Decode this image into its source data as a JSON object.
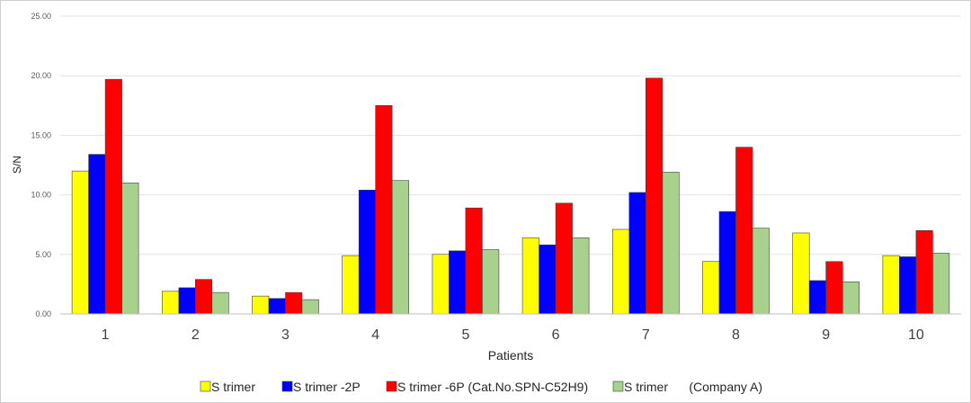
{
  "chart_data": {
    "type": "bar",
    "title": "",
    "xlabel": "Patients",
    "ylabel": "S/N",
    "ylim": [
      0,
      25
    ],
    "yticks": [
      "0.00",
      "5.00",
      "10.00",
      "15.00",
      "20.00",
      "25.00"
    ],
    "categories": [
      "1",
      "2",
      "3",
      "4",
      "5",
      "6",
      "7",
      "8",
      "9",
      "10"
    ],
    "grid": true,
    "legend_position": "bottom",
    "series": [
      {
        "name": "S trimer",
        "color": "#ffff00",
        "values": [
          12.0,
          1.9,
          1.5,
          4.9,
          5.0,
          6.4,
          7.1,
          4.4,
          6.8,
          4.9
        ]
      },
      {
        "name": "S trimer -2P",
        "color": "#0000ff",
        "values": [
          13.4,
          2.2,
          1.3,
          10.4,
          5.3,
          5.8,
          10.2,
          8.6,
          2.8,
          4.8
        ]
      },
      {
        "name": "S trimer -6P (Cat.No.SPN-C52H9)",
        "color": "#ff0000",
        "values": [
          19.7,
          2.9,
          1.8,
          17.5,
          8.9,
          9.3,
          19.8,
          14.0,
          4.4,
          7.0
        ]
      },
      {
        "name": "S trimer      (Company A)",
        "color": "#a9d18e",
        "values": [
          11.0,
          1.8,
          1.2,
          11.2,
          5.4,
          6.4,
          11.9,
          7.2,
          2.7,
          5.1
        ]
      }
    ]
  }
}
